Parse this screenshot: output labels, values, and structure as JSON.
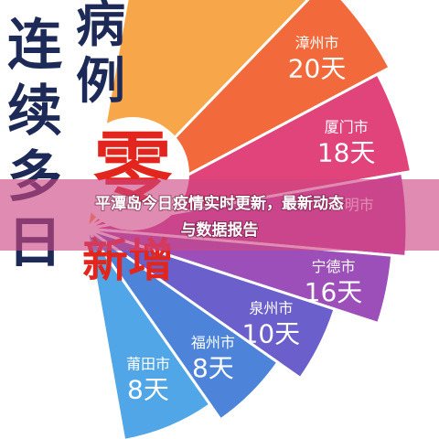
{
  "banner": {
    "title_line1": "平潭岛今日疫情实时更新，最新动态",
    "title_line2": "与数据报告"
  },
  "poster": {
    "left_column": [
      "连",
      "续",
      "多",
      "日"
    ],
    "right_column": [
      "病",
      "例"
    ],
    "zero": "零",
    "new_cases": "新增",
    "segments": [
      {
        "city": "漳州市",
        "days": "20天"
      },
      {
        "city": "厦门市",
        "days": "18天"
      },
      {
        "city": "三明市",
        "days": ""
      },
      {
        "city": "宁德市",
        "days": "16天"
      },
      {
        "city": "泉州市",
        "days": "10天"
      },
      {
        "city": "福州市",
        "days": "8天"
      },
      {
        "city": "莆田市",
        "days": "8天"
      }
    ]
  }
}
